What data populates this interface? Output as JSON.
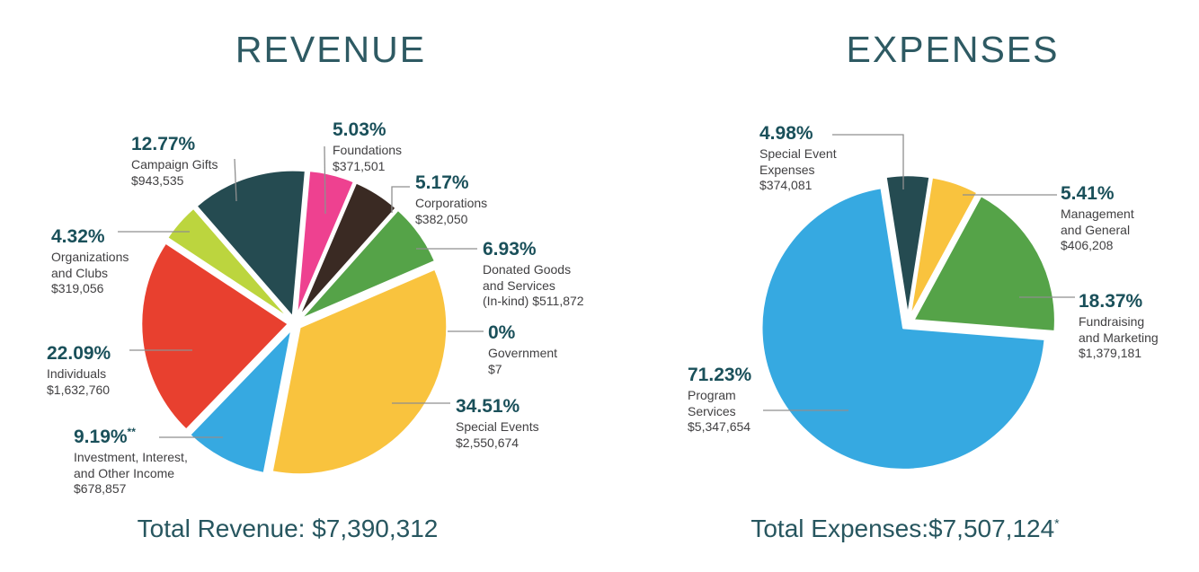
{
  "chart_data": [
    {
      "type": "pie",
      "title": "REVENUE",
      "total_text": "Total Revenue: $7,390,312",
      "total_note": "",
      "total_value": "$7,390,312",
      "start_angle_deg": 5,
      "direction": "clockwise",
      "legend_position": "around-slices",
      "slices": [
        {
          "label": "Foundations",
          "pct": 5.03,
          "pct_label": "5.03%",
          "pct_note": "",
          "amount": "$371,501",
          "color": "#ee4190",
          "display_lines": [
            "Foundations",
            "$371,501"
          ]
        },
        {
          "label": "Corporations",
          "pct": 5.17,
          "pct_label": "5.17%",
          "pct_note": "",
          "amount": "$382,050",
          "color": "#3a2a23",
          "display_lines": [
            "Corporations",
            "$382,050"
          ]
        },
        {
          "label": "Donated Goods and Services (In-kind)",
          "pct": 6.93,
          "pct_label": "6.93%",
          "pct_note": "",
          "amount": "$511,872",
          "color": "#55a348",
          "display_lines": [
            "Donated Goods",
            "and Services",
            "(In-kind) $511,872"
          ]
        },
        {
          "label": "Government",
          "pct": 0,
          "pct_label": "0%",
          "pct_note": "",
          "amount": "$7",
          "color": "#cccccc",
          "display_lines": [
            "Government",
            "$7"
          ]
        },
        {
          "label": "Special Events",
          "pct": 34.51,
          "pct_label": "34.51%",
          "pct_note": "",
          "amount": "$2,550,674",
          "color": "#f9c33e",
          "display_lines": [
            "Special Events",
            "$2,550,674"
          ]
        },
        {
          "label": "Investment, Interest, and Other Income",
          "pct": 9.19,
          "pct_label": "9.19%",
          "pct_note": "**",
          "amount": "$678,857",
          "color": "#36a9e1",
          "display_lines": [
            "Investment, Interest,",
            "and Other Income",
            "$678,857"
          ]
        },
        {
          "label": "Individuals",
          "pct": 22.09,
          "pct_label": "22.09%",
          "pct_note": "",
          "amount": "$1,632,760",
          "color": "#e8402f",
          "display_lines": [
            "Individuals",
            "$1,632,760"
          ]
        },
        {
          "label": "Organizations and Clubs",
          "pct": 4.32,
          "pct_label": "4.32%",
          "pct_note": "",
          "amount": "$319,056",
          "color": "#bcd53e",
          "display_lines": [
            "Organizations",
            "and Clubs",
            "$319,056"
          ]
        },
        {
          "label": "Campaign Gifts",
          "pct": 12.77,
          "pct_label": "12.77%",
          "pct_note": "",
          "amount": "$943,535",
          "color": "#254b51",
          "display_lines": [
            "Campaign Gifts",
            "$943,535"
          ]
        }
      ]
    },
    {
      "type": "pie",
      "title": "EXPENSES",
      "total_text": "Total Expenses:$7,507,124",
      "total_note": "*",
      "total_value": "$7,507,124",
      "start_angle_deg": -8.96,
      "direction": "clockwise",
      "legend_position": "around-slices",
      "slices": [
        {
          "label": "Special Event Expenses",
          "pct": 4.98,
          "pct_label": "4.98%",
          "pct_note": "",
          "amount": "$374,081",
          "color": "#254b51",
          "display_lines": [
            "Special Event",
            "Expenses",
            "$374,081"
          ]
        },
        {
          "label": "Management and General",
          "pct": 5.41,
          "pct_label": "5.41%",
          "pct_note": "",
          "amount": "$406,208",
          "color": "#f9c33e",
          "display_lines": [
            "Management",
            "and General",
            "$406,208"
          ]
        },
        {
          "label": "Fundraising and Marketing",
          "pct": 18.37,
          "pct_label": "18.37%",
          "pct_note": "",
          "amount": "$1,379,181",
          "color": "#55a348",
          "display_lines": [
            "Fundraising",
            "and Marketing",
            "$1,379,181"
          ]
        },
        {
          "label": "Program Services",
          "pct": 71.23,
          "pct_label": "71.23%",
          "pct_note": "",
          "amount": "$5,347,654",
          "color": "#36a9e1",
          "display_lines": [
            "Program",
            "Services",
            "$5,347,654"
          ]
        }
      ]
    }
  ]
}
